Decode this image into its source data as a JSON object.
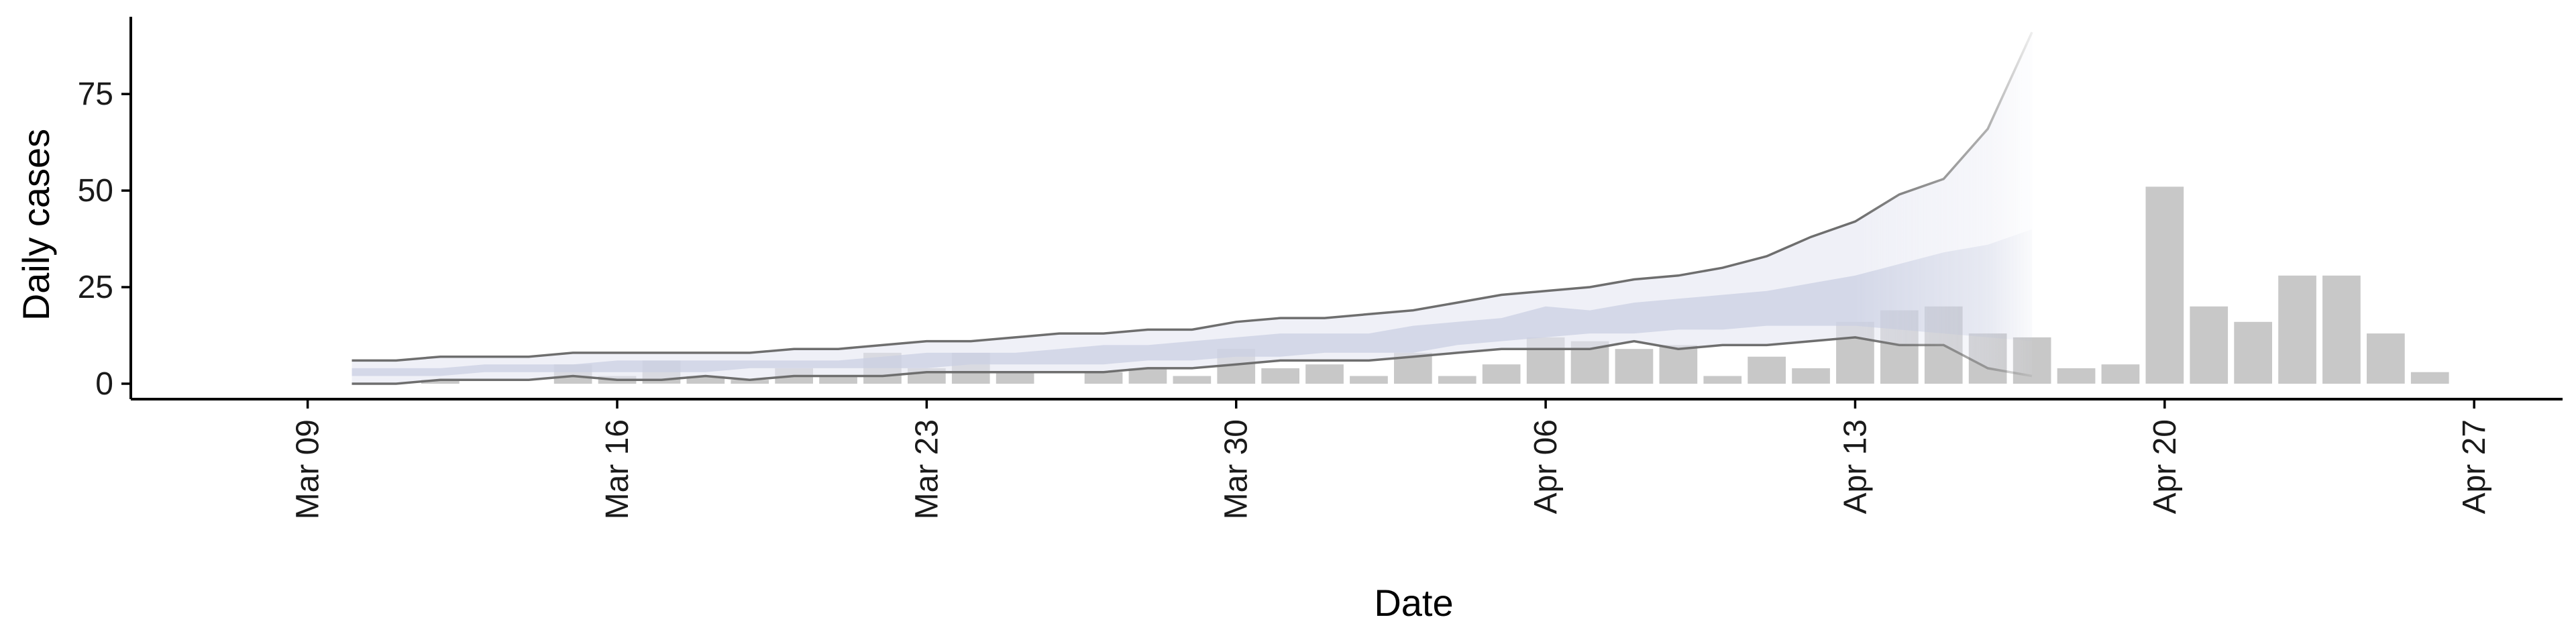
{
  "chart_data": {
    "type": "bar",
    "xlabel": "Date",
    "ylabel": "Daily cases",
    "ylim": [
      -4,
      95
    ],
    "x_range": [
      "2020-03-05",
      "2020-04-29"
    ],
    "y_ticks": [
      0,
      25,
      50,
      75
    ],
    "x_ticks": [
      {
        "date": "2020-03-09",
        "label": "Mar 09"
      },
      {
        "date": "2020-03-16",
        "label": "Mar 16"
      },
      {
        "date": "2020-03-23",
        "label": "Mar 23"
      },
      {
        "date": "2020-03-30",
        "label": "Mar 30"
      },
      {
        "date": "2020-04-06",
        "label": "Apr 06"
      },
      {
        "date": "2020-04-13",
        "label": "Apr 13"
      },
      {
        "date": "2020-04-20",
        "label": "Apr 20"
      },
      {
        "date": "2020-04-27",
        "label": "Apr 27"
      }
    ],
    "colors": {
      "bars": "#c8c8c8",
      "outer_band": "#e4e6f2",
      "inner_band": "#c9cfe3",
      "band_lines": "#6e6e6e"
    },
    "bars": {
      "dates": [
        "2020-03-12",
        "2020-03-15",
        "2020-03-16",
        "2020-03-17",
        "2020-03-18",
        "2020-03-19",
        "2020-03-20",
        "2020-03-21",
        "2020-03-22",
        "2020-03-23",
        "2020-03-24",
        "2020-03-25",
        "2020-03-27",
        "2020-03-28",
        "2020-03-29",
        "2020-03-30",
        "2020-03-31",
        "2020-04-01",
        "2020-04-02",
        "2020-04-03",
        "2020-04-04",
        "2020-04-05",
        "2020-04-06",
        "2020-04-07",
        "2020-04-08",
        "2020-04-09",
        "2020-04-10",
        "2020-04-11",
        "2020-04-12",
        "2020-04-13",
        "2020-04-14",
        "2020-04-15",
        "2020-04-16",
        "2020-04-17",
        "2020-04-18",
        "2020-04-19",
        "2020-04-20",
        "2020-04-21",
        "2020-04-22",
        "2020-04-23",
        "2020-04-24",
        "2020-04-25",
        "2020-04-26"
      ],
      "values": [
        1,
        5,
        2,
        6,
        2,
        1,
        4,
        2,
        8,
        4,
        8,
        3,
        3,
        4,
        2,
        9,
        4,
        5,
        2,
        8,
        2,
        5,
        12,
        11,
        9,
        10,
        2,
        7,
        4,
        16,
        19,
        20,
        13,
        12,
        4,
        5,
        51,
        20,
        16,
        28,
        28,
        13,
        3
      ]
    },
    "estimate": {
      "dates": [
        "2020-03-10",
        "2020-03-11",
        "2020-03-12",
        "2020-03-13",
        "2020-03-14",
        "2020-03-15",
        "2020-03-16",
        "2020-03-17",
        "2020-03-18",
        "2020-03-19",
        "2020-03-20",
        "2020-03-21",
        "2020-03-22",
        "2020-03-23",
        "2020-03-24",
        "2020-03-25",
        "2020-03-26",
        "2020-03-27",
        "2020-03-28",
        "2020-03-29",
        "2020-03-30",
        "2020-03-31",
        "2020-04-01",
        "2020-04-02",
        "2020-04-03",
        "2020-04-04",
        "2020-04-05",
        "2020-04-06",
        "2020-04-07",
        "2020-04-08",
        "2020-04-09",
        "2020-04-10",
        "2020-04-11",
        "2020-04-12",
        "2020-04-13",
        "2020-04-14",
        "2020-04-15",
        "2020-04-16",
        "2020-04-17"
      ],
      "lower_90": [
        0,
        0,
        1,
        1,
        1,
        2,
        1,
        1,
        2,
        1,
        2,
        2,
        2,
        3,
        3,
        3,
        3,
        3,
        4,
        4,
        5,
        6,
        6,
        6,
        7,
        8,
        9,
        9,
        9,
        11,
        9,
        10,
        10,
        11,
        12,
        10,
        10,
        4,
        2
      ],
      "upper_90": [
        6,
        6,
        7,
        7,
        7,
        8,
        8,
        8,
        8,
        8,
        9,
        9,
        10,
        11,
        11,
        12,
        13,
        13,
        14,
        14,
        16,
        17,
        17,
        18,
        19,
        21,
        23,
        24,
        25,
        27,
        28,
        30,
        33,
        38,
        42,
        49,
        53,
        66,
        91
      ],
      "lower_50": [
        2,
        2,
        2,
        3,
        3,
        3,
        3,
        3,
        3,
        4,
        4,
        4,
        4,
        4,
        5,
        5,
        5,
        5,
        6,
        6,
        7,
        7,
        8,
        8,
        8,
        10,
        11,
        12,
        13,
        13,
        14,
        14,
        15,
        15,
        15,
        14,
        13,
        12,
        11
      ],
      "upper_50": [
        4,
        4,
        4,
        5,
        5,
        5,
        6,
        6,
        6,
        6,
        6,
        6,
        7,
        8,
        8,
        8,
        9,
        10,
        10,
        11,
        12,
        13,
        13,
        13,
        15,
        16,
        17,
        20,
        19,
        21,
        22,
        23,
        24,
        26,
        28,
        31,
        34,
        36,
        40
      ],
      "fade_after": "2020-04-13"
    }
  }
}
